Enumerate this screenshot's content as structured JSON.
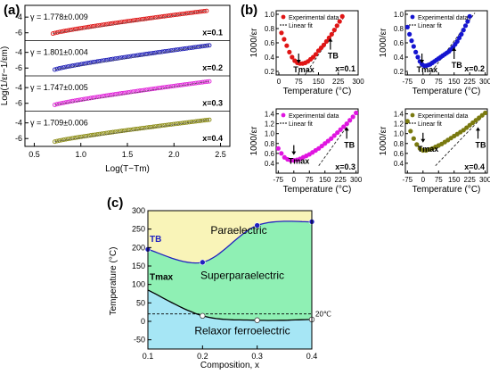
{
  "panel_labels": {
    "a": "(a)",
    "b": "(b)",
    "c": "(c)"
  },
  "chart_data": [
    {
      "type": "scatter",
      "panel": "a",
      "xlabel": "Log(T−Tm)",
      "ylabel": "Log(1/εr−1/εm)",
      "xlim": [
        0.4,
        2.6
      ],
      "xticks": [
        "0.5",
        "1.0",
        "1.5",
        "2.0",
        "2.5"
      ],
      "yticks": [
        "-4",
        "-6"
      ],
      "legend_placement": "inside-left",
      "series": [
        {
          "label": "x=0.1",
          "gamma": "γ = 1.778±0.009",
          "color": "#dd1111",
          "x_start": 0.7,
          "x_end": 2.35,
          "y_start": -6.1,
          "y_end": -3.2
        },
        {
          "label": "x=0.2",
          "gamma": "γ = 1.801±0.004",
          "color": "#1a1ab5",
          "x_start": 0.72,
          "x_end": 2.38,
          "y_start": -6.2,
          "y_end": -3.1
        },
        {
          "label": "x=0.3",
          "gamma": "γ = 1.747±0.005",
          "color": "#e020d8",
          "x_start": 0.72,
          "x_end": 2.38,
          "y_start": -6.2,
          "y_end": -3.2
        },
        {
          "label": "x=0.4",
          "gamma": "γ = 1.709±0.006",
          "color": "#8a8a10",
          "x_start": 0.72,
          "x_end": 2.38,
          "y_start": -6.4,
          "y_end": -3.6
        }
      ]
    },
    {
      "type": "scatter",
      "panel": "b",
      "xlabel": "Temperature (°C)",
      "ylabel": "1000/εr",
      "legend": [
        "Experimental data",
        "Linear fit"
      ],
      "subplots": [
        {
          "label": "x=0.1",
          "color": "#e01515",
          "xlim": [
            -10,
            300
          ],
          "xticks": [
            "0",
            "75",
            "150",
            "225",
            "300"
          ],
          "ylim": [
            0.15,
            1.05
          ],
          "yticks": [
            "0.2",
            "0.4",
            "0.6",
            "0.8",
            "1.0"
          ],
          "tmax_label": "Tmax",
          "tb_label": "TB",
          "tmax_x": 75,
          "tmax_y": 0.3,
          "tb_x": 195,
          "tb_y": 0.68,
          "points": [
            [
              10,
              0.74
            ],
            [
              20,
              0.65
            ],
            [
              30,
              0.56
            ],
            [
              40,
              0.47
            ],
            [
              50,
              0.4
            ],
            [
              60,
              0.35
            ],
            [
              70,
              0.32
            ],
            [
              80,
              0.31
            ],
            [
              90,
              0.31
            ],
            [
              100,
              0.32
            ],
            [
              110,
              0.34
            ],
            [
              120,
              0.37
            ],
            [
              130,
              0.4
            ],
            [
              140,
              0.44
            ],
            [
              150,
              0.49
            ],
            [
              160,
              0.53
            ],
            [
              170,
              0.57
            ],
            [
              180,
              0.62
            ],
            [
              190,
              0.67
            ],
            [
              200,
              0.72
            ],
            [
              210,
              0.78
            ],
            [
              220,
              0.84
            ],
            [
              230,
              0.9
            ],
            [
              240,
              0.97
            ]
          ],
          "fit": [
            [
              80,
              0.05
            ],
            [
              250,
              0.98
            ]
          ]
        },
        {
          "label": "x=0.2",
          "color": "#1515d0",
          "xlim": [
            -85,
            310
          ],
          "xticks": [
            "-75",
            "0",
            "75",
            "150",
            "225",
            "300"
          ],
          "ylim": [
            0.15,
            1.05
          ],
          "yticks": [
            "0.2",
            "0.4",
            "0.6",
            "0.8",
            "1.0"
          ],
          "tmax_label": "Tmax",
          "tb_label": "TB",
          "tmax_x": -5,
          "tmax_y": 0.3,
          "tb_x": 150,
          "tb_y": 0.55,
          "points": [
            [
              -75,
              0.82
            ],
            [
              -65,
              0.72
            ],
            [
              -55,
              0.63
            ],
            [
              -45,
              0.55
            ],
            [
              -35,
              0.47
            ],
            [
              -25,
              0.4
            ],
            [
              -15,
              0.34
            ],
            [
              -5,
              0.3
            ],
            [
              5,
              0.28
            ],
            [
              15,
              0.28
            ],
            [
              25,
              0.29
            ],
            [
              35,
              0.3
            ],
            [
              45,
              0.32
            ],
            [
              55,
              0.34
            ],
            [
              65,
              0.36
            ],
            [
              75,
              0.38
            ],
            [
              85,
              0.4
            ],
            [
              95,
              0.42
            ],
            [
              105,
              0.44
            ],
            [
              115,
              0.46
            ],
            [
              125,
              0.48
            ],
            [
              135,
              0.51
            ],
            [
              145,
              0.54
            ],
            [
              155,
              0.58
            ],
            [
              165,
              0.62
            ],
            [
              175,
              0.67
            ],
            [
              185,
              0.72
            ],
            [
              195,
              0.78
            ],
            [
              205,
              0.84
            ],
            [
              215,
              0.9
            ],
            [
              225,
              0.97
            ]
          ],
          "fit": [
            [
              30,
              0.15
            ],
            [
              250,
              1.02
            ]
          ]
        },
        {
          "label": "x=0.3",
          "color": "#e015e0",
          "xlim": [
            -85,
            310
          ],
          "xticks": [
            "-75",
            "0",
            "75",
            "150",
            "225",
            "300"
          ],
          "ylim": [
            0.2,
            1.5
          ],
          "yticks": [
            "0.4",
            "0.6",
            "0.8",
            "1.0",
            "1.2",
            "1.4"
          ],
          "tmax_label": "Tmax",
          "tb_label": "TB",
          "tmax_x": 0,
          "tmax_y": 0.55,
          "tb_x": 255,
          "tb_y": 1.15,
          "points": [
            [
              -75,
              0.7
            ],
            [
              -60,
              0.6
            ],
            [
              -45,
              0.52
            ],
            [
              -30,
              0.48
            ],
            [
              -15,
              0.46
            ],
            [
              0,
              0.46
            ],
            [
              15,
              0.47
            ],
            [
              30,
              0.49
            ],
            [
              45,
              0.52
            ],
            [
              60,
              0.55
            ],
            [
              75,
              0.58
            ],
            [
              90,
              0.62
            ],
            [
              105,
              0.66
            ],
            [
              120,
              0.7
            ],
            [
              135,
              0.75
            ],
            [
              150,
              0.8
            ],
            [
              165,
              0.85
            ],
            [
              180,
              0.9
            ],
            [
              195,
              0.96
            ],
            [
              210,
              1.02
            ],
            [
              225,
              1.08
            ],
            [
              240,
              1.14
            ],
            [
              255,
              1.2
            ],
            [
              270,
              1.27
            ],
            [
              285,
              1.34
            ],
            [
              300,
              1.42
            ]
          ],
          "fit": [
            [
              120,
              0.35
            ],
            [
              300,
              1.4
            ]
          ]
        },
        {
          "label": "x=0.4",
          "color": "#7a7a10",
          "xlim": [
            -85,
            310
          ],
          "xticks": [
            "-75",
            "0",
            "75",
            "150",
            "225",
            "300"
          ],
          "ylim": [
            0.2,
            1.5
          ],
          "yticks": [
            "0.4",
            "0.6",
            "0.8",
            "1.0",
            "1.2",
            "1.4"
          ],
          "tmax_label": "Tmax",
          "tb_label": "TB",
          "tmax_x": 0,
          "tmax_y": 0.8,
          "tb_x": 265,
          "tb_y": 1.15,
          "points": [
            [
              -75,
              1.25
            ],
            [
              -60,
              1.05
            ],
            [
              -45,
              0.9
            ],
            [
              -30,
              0.78
            ],
            [
              -15,
              0.7
            ],
            [
              0,
              0.66
            ],
            [
              15,
              0.66
            ],
            [
              30,
              0.68
            ],
            [
              45,
              0.7
            ],
            [
              60,
              0.73
            ],
            [
              75,
              0.76
            ],
            [
              90,
              0.79
            ],
            [
              105,
              0.83
            ],
            [
              120,
              0.87
            ],
            [
              135,
              0.91
            ],
            [
              150,
              0.95
            ],
            [
              165,
              0.99
            ],
            [
              180,
              1.03
            ],
            [
              195,
              1.07
            ],
            [
              210,
              1.12
            ],
            [
              225,
              1.17
            ],
            [
              240,
              1.22
            ],
            [
              255,
              1.27
            ],
            [
              270,
              1.32
            ],
            [
              285,
              1.37
            ],
            [
              300,
              1.42
            ]
          ],
          "fit": [
            [
              60,
              0.35
            ],
            [
              300,
              1.4
            ]
          ]
        }
      ]
    },
    {
      "type": "area",
      "panel": "c",
      "xlabel": "Composition, x",
      "ylabel": "Temperature (°C)",
      "xlim": [
        0.1,
        0.4
      ],
      "ylim": [
        -75,
        300
      ],
      "xticks": [
        "0.1",
        "0.2",
        "0.3",
        "0.4"
      ],
      "yticks": [
        "-50",
        "0",
        "50",
        "100",
        "150",
        "200",
        "250",
        "300"
      ],
      "regions": {
        "top": "Paraelectric",
        "middle": "Superparaelectric",
        "bottom": "Relaxor ferroelectric"
      },
      "region_colors": {
        "top": "#f9f4b8",
        "middle": "#8ff0b4",
        "bottom": "#a6e6f5"
      },
      "tb_label": "TB",
      "tmax_label": "Tmax",
      "ref_line_label": "20℃",
      "ref_line_value": 20,
      "tb_series": {
        "x": [
          0.1,
          0.2,
          0.3,
          0.4
        ],
        "y": [
          195,
          160,
          260,
          270
        ]
      },
      "tmax_series": {
        "x": [
          0.1,
          0.2,
          0.3,
          0.4
        ],
        "y": [
          85,
          15,
          3,
          5
        ]
      }
    }
  ]
}
